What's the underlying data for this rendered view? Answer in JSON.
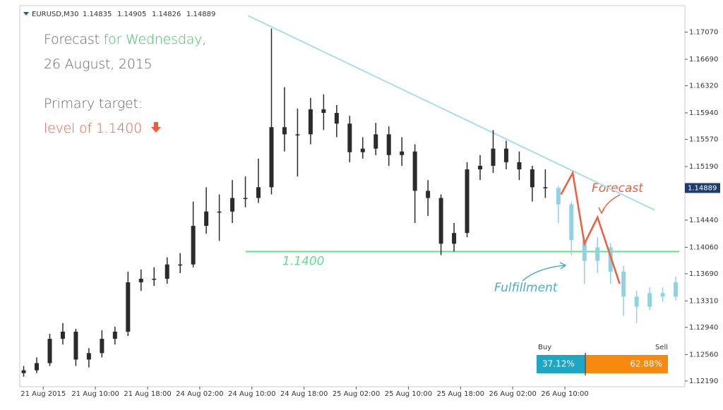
{
  "chart_data": {
    "type": "candlestick",
    "symbol": "EURUSD,M30",
    "quote": [
      1.14835,
      1.14905,
      1.14826,
      1.14889
    ],
    "xlim": [
      -0.3,
      50.7
    ],
    "ylim": [
      1.1211,
      1.1744
    ],
    "xticks": [
      {
        "value": 1.5,
        "label": "21 Aug 2015"
      },
      {
        "value": 5.5,
        "label": "21 Aug 10:00"
      },
      {
        "value": 9.5,
        "label": "21 Aug 18:00"
      },
      {
        "value": 13.5,
        "label": "24 Aug 02:00"
      },
      {
        "value": 17.5,
        "label": "24 Aug 10:00"
      },
      {
        "value": 21.5,
        "label": "24 Aug 18:00"
      },
      {
        "value": 25.5,
        "label": "25 Aug 02:00"
      },
      {
        "value": 29.5,
        "label": "25 Aug 10:00"
      },
      {
        "value": 33.5,
        "label": "25 Aug 18:00"
      },
      {
        "value": 37.5,
        "label": "26 Aug 02:00"
      },
      {
        "value": 41.5,
        "label": "26 Aug 10:00"
      }
    ],
    "yticks": [
      {
        "value": 1.1219,
        "label": "1.12190"
      },
      {
        "value": 1.1256,
        "label": "1.12560"
      },
      {
        "value": 1.1294,
        "label": "1.12940"
      },
      {
        "value": 1.1331,
        "label": "1.13310"
      },
      {
        "value": 1.1369,
        "label": "1.13690"
      },
      {
        "value": 1.1406,
        "label": "1.14060"
      },
      {
        "value": 1.1444,
        "label": "1.14440"
      },
      {
        "value": 1.1519,
        "label": "1.15190"
      },
      {
        "value": 1.1557,
        "label": "1.15570"
      },
      {
        "value": 1.1594,
        "label": "1.15940"
      },
      {
        "value": 1.1632,
        "label": "1.16320"
      },
      {
        "value": 1.1669,
        "label": "1.16690"
      },
      {
        "value": 1.1707,
        "label": "1.17070"
      }
    ],
    "series": [
      {
        "color": "#2b2b2b",
        "x": [
          0,
          1,
          2,
          3,
          4,
          5,
          6,
          7,
          8,
          9,
          10,
          11,
          12,
          13,
          14,
          15,
          16,
          17,
          18,
          19,
          20,
          21,
          22,
          23,
          24,
          25,
          26,
          27,
          28,
          29,
          30,
          31,
          32,
          33,
          34,
          35,
          36,
          37,
          38,
          39,
          40
        ],
        "ohlc": [
          [
            1.123,
            1.124,
            1.1225,
            1.1234
          ],
          [
            1.1234,
            1.1252,
            1.123,
            1.1244
          ],
          [
            1.1244,
            1.1285,
            1.124,
            1.1278
          ],
          [
            1.1278,
            1.13,
            1.127,
            1.1288
          ],
          [
            1.1288,
            1.1292,
            1.124,
            1.1249
          ],
          [
            1.1249,
            1.1265,
            1.1238,
            1.1258
          ],
          [
            1.1258,
            1.129,
            1.1252,
            1.1278
          ],
          [
            1.1278,
            1.1295,
            1.127,
            1.1288
          ],
          [
            1.1288,
            1.1372,
            1.1282,
            1.1357
          ],
          [
            1.1357,
            1.1375,
            1.1345,
            1.1362
          ],
          [
            1.1362,
            1.1378,
            1.1352,
            1.1362
          ],
          [
            1.1362,
            1.1392,
            1.1355,
            1.1382
          ],
          [
            1.1382,
            1.1398,
            1.137,
            1.1382
          ],
          [
            1.1382,
            1.147,
            1.1378,
            1.1436
          ],
          [
            1.1436,
            1.149,
            1.1425,
            1.1456
          ],
          [
            1.1456,
            1.148,
            1.1415,
            1.1456
          ],
          [
            1.1456,
            1.15,
            1.144,
            1.1475
          ],
          [
            1.1475,
            1.1505,
            1.1462,
            1.1475
          ],
          [
            1.1475,
            1.153,
            1.1468,
            1.149
          ],
          [
            1.149,
            1.1712,
            1.148,
            1.1574
          ],
          [
            1.1574,
            1.163,
            1.154,
            1.1564
          ],
          [
            1.1564,
            1.16,
            1.1505,
            1.1564
          ],
          [
            1.1564,
            1.1615,
            1.155,
            1.1599
          ],
          [
            1.1599,
            1.162,
            1.157,
            1.1594
          ],
          [
            1.1594,
            1.1605,
            1.156,
            1.1579
          ],
          [
            1.1579,
            1.159,
            1.1525,
            1.1539
          ],
          [
            1.1539,
            1.156,
            1.153,
            1.1544
          ],
          [
            1.1544,
            1.158,
            1.1535,
            1.1564
          ],
          [
            1.1564,
            1.1575,
            1.152,
            1.1535
          ],
          [
            1.1535,
            1.156,
            1.152,
            1.154
          ],
          [
            1.154,
            1.155,
            1.144,
            1.1485
          ],
          [
            1.1485,
            1.15,
            1.145,
            1.1475
          ],
          [
            1.1475,
            1.148,
            1.1395,
            1.1411
          ],
          [
            1.1411,
            1.144,
            1.14,
            1.1426
          ],
          [
            1.1426,
            1.1525,
            1.142,
            1.1515
          ],
          [
            1.1515,
            1.1535,
            1.15,
            1.152
          ],
          [
            1.152,
            1.157,
            1.151,
            1.1544
          ],
          [
            1.1544,
            1.1555,
            1.1515,
            1.1525
          ],
          [
            1.1525,
            1.154,
            1.15,
            1.1515
          ],
          [
            1.1515,
            1.152,
            1.147,
            1.149
          ],
          [
            1.149,
            1.1515,
            1.1475,
            1.14889
          ]
        ]
      },
      {
        "color": "#8fd3e3",
        "x": [
          41,
          42,
          43,
          44,
          45,
          46,
          47,
          48,
          49,
          50
        ],
        "ohlc": [
          [
            1.14889,
            1.1492,
            1.144,
            1.1466
          ],
          [
            1.1466,
            1.147,
            1.1395,
            1.1416
          ],
          [
            1.1416,
            1.142,
            1.1355,
            1.1387
          ],
          [
            1.1387,
            1.142,
            1.137,
            1.1406
          ],
          [
            1.1406,
            1.1412,
            1.1355,
            1.1372
          ],
          [
            1.1372,
            1.138,
            1.131,
            1.1337
          ],
          [
            1.1337,
            1.1345,
            1.13,
            1.1323
          ],
          [
            1.1323,
            1.135,
            1.1318,
            1.1342
          ],
          [
            1.1342,
            1.135,
            1.133,
            1.1337
          ],
          [
            1.1337,
            1.1365,
            1.1332,
            1.1357
          ]
        ]
      }
    ],
    "last_price": 1.14889,
    "trendline": {
      "color": "#a9dde9",
      "x": [
        17.2,
        48.4
      ],
      "y": [
        1.173,
        1.1458
      ]
    },
    "level": {
      "color": "#5fe08a",
      "value": {
        "value": 1.14,
        "label": "1.1400"
      }
    },
    "forecast_path": {
      "label": "Forecast",
      "color": "#f25c3b",
      "x": [
        41.2,
        42.1,
        43.0,
        44.0,
        45.7
      ],
      "y": [
        1.148,
        1.151,
        1.1411,
        1.1448,
        1.1355
      ]
    },
    "fulfillment_label": "Fulfillment"
  },
  "overlay": {
    "line1": [
      "Forecast",
      "for Wednesday",
      ","
    ],
    "line2": "26 August, 2015",
    "line3": "Primary target:",
    "line4": "level of 1.1400"
  },
  "sentiment": {
    "buy_label": "Buy",
    "sell_label": "Sell",
    "buy": {
      "value": 37.12,
      "label": "37.12%"
    },
    "sell": {
      "value": 62.88,
      "label": "62.88%"
    }
  }
}
